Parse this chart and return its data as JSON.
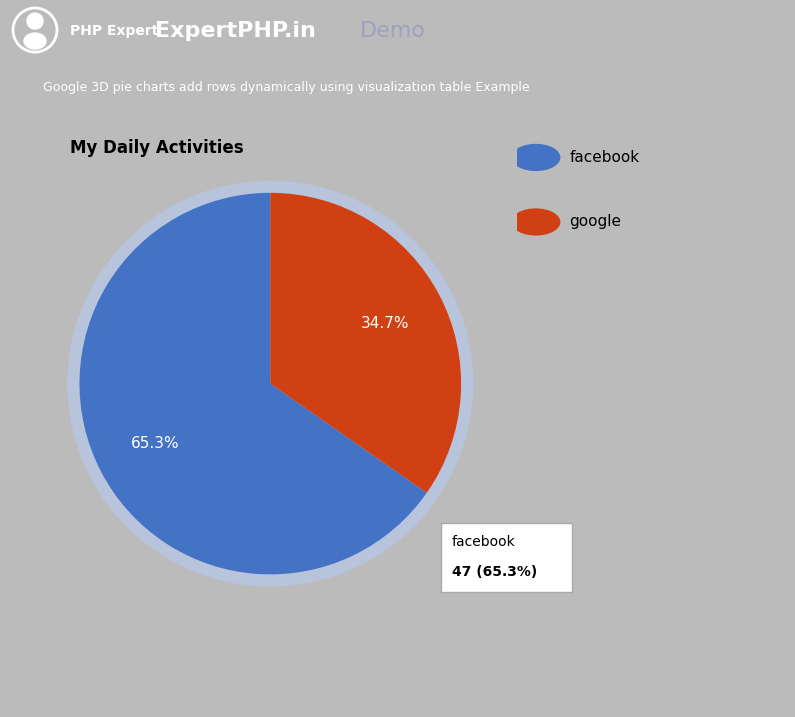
{
  "title": "My Daily Activities",
  "labels": [
    "facebook",
    "google"
  ],
  "values": [
    65.3,
    34.7
  ],
  "colors": [
    "#4472C4",
    "#D14012"
  ],
  "explode": [
    0.0,
    0.0
  ],
  "tooltip_label": "facebook",
  "tooltip_value": "47 (65.3%)",
  "header_text": "Google 3D pie charts add rows dynamically using visualization table Example",
  "header_bg": "#3D8EB9",
  "header_text_color": "#FFFFFF",
  "navbar_bg": "#22B8C8",
  "brand_main": "ExpertPHP.in",
  "brand_prefix": "PHP Expert",
  "demo_text": "Demo",
  "demo_color": "#A0A0C0",
  "outer_bg": "#BBBBBB",
  "inner_bg": "#FFFFFF",
  "shadow_color": "#B8C4DC",
  "card_border_color": "#5B9BD5",
  "title_fontsize": 12,
  "legend_fontsize": 11,
  "pct_fontsize": 11,
  "header_fontsize": 9,
  "navbar_fontsize_brand": 16,
  "navbar_fontsize_prefix": 10,
  "startangle": 90,
  "pct_distance": 0.68
}
